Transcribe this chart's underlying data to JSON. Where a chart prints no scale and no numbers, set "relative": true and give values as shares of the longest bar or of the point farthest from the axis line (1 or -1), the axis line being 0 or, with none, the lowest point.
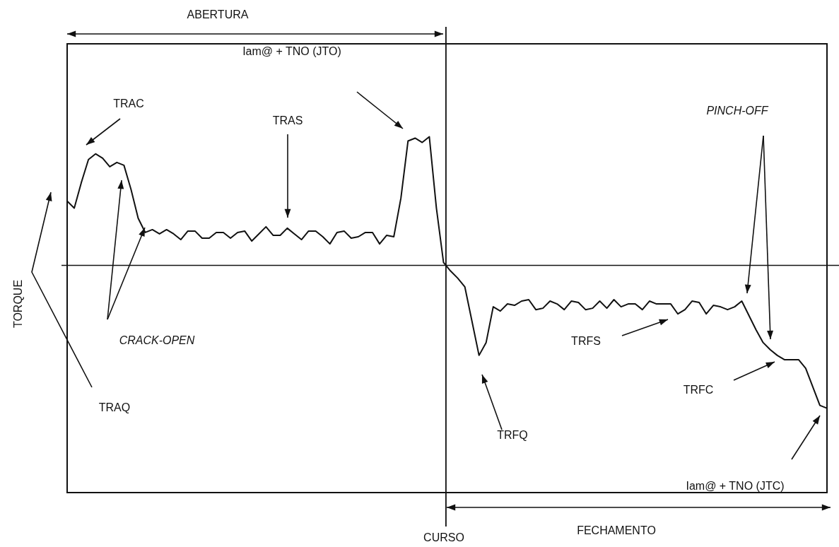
{
  "chart_data": {
    "type": "line",
    "ylabel": "TORQUE",
    "relative": true,
    "marker": "none",
    "color": "#111111",
    "annotations": [
      "ABERTURA",
      "Iam@ + TNO (JTO)",
      "TRAC",
      "TRAS",
      "PINCH-OFF",
      "CRACK-OPEN",
      "TRAQ",
      "TRFS",
      "TRFC",
      "TRFQ",
      "Iam@ + TNO (JTC)",
      "FECHAMENTO",
      "CURSO"
    ],
    "categories": [
      null,
      null,
      null,
      null,
      null,
      null,
      null,
      null,
      null,
      null,
      null,
      null,
      null,
      null,
      null,
      null,
      null,
      null,
      null,
      null,
      null,
      null,
      null,
      null,
      null,
      null,
      null,
      null,
      null,
      null,
      null,
      null,
      null,
      null,
      null,
      null,
      null,
      null,
      null,
      null,
      null,
      null,
      null,
      null,
      null,
      null,
      null,
      null,
      null,
      null,
      null,
      null,
      null,
      null,
      null,
      null,
      null,
      null,
      null,
      null,
      null,
      null,
      null,
      null,
      null,
      null,
      null,
      null,
      null,
      null,
      null,
      null,
      null,
      null,
      null,
      null,
      null,
      null,
      null,
      null,
      null,
      null,
      null,
      null,
      null,
      null,
      null,
      null,
      null,
      null,
      null,
      null,
      null,
      null,
      null,
      null,
      null,
      null,
      null,
      null,
      null,
      null,
      null,
      null,
      null,
      null,
      null,
      null
    ],
    "values": [
      0.45,
      0.4,
      0.58,
      0.74,
      0.78,
      0.75,
      0.69,
      0.72,
      0.7,
      0.53,
      0.33,
      0.23,
      0.25,
      0.22,
      0.25,
      0.22,
      0.18,
      0.24,
      0.24,
      0.19,
      0.19,
      0.23,
      0.23,
      0.19,
      0.23,
      0.24,
      0.17,
      0.22,
      0.27,
      0.21,
      0.21,
      0.26,
      0.22,
      0.18,
      0.24,
      0.24,
      0.2,
      0.15,
      0.23,
      0.24,
      0.19,
      0.2,
      0.23,
      0.23,
      0.15,
      0.21,
      0.2,
      0.47,
      0.87,
      0.89,
      0.86,
      0.9,
      0.4,
      0.02,
      -0.04,
      -0.09,
      -0.15,
      -0.39,
      -0.63,
      -0.54,
      -0.29,
      -0.32,
      -0.27,
      -0.28,
      -0.25,
      -0.24,
      -0.31,
      -0.3,
      -0.25,
      -0.27,
      -0.31,
      -0.25,
      -0.26,
      -0.31,
      -0.3,
      -0.25,
      -0.3,
      -0.24,
      -0.29,
      -0.27,
      -0.27,
      -0.31,
      -0.25,
      -0.27,
      -0.27,
      -0.27,
      -0.34,
      -0.31,
      -0.25,
      -0.26,
      -0.34,
      -0.28,
      -0.29,
      -0.31,
      -0.29,
      -0.25,
      -0.35,
      -0.45,
      -0.54,
      -0.59,
      -0.63,
      -0.66,
      -0.66,
      -0.66,
      -0.72,
      -0.85,
      -0.98,
      -1.0
    ]
  }
}
